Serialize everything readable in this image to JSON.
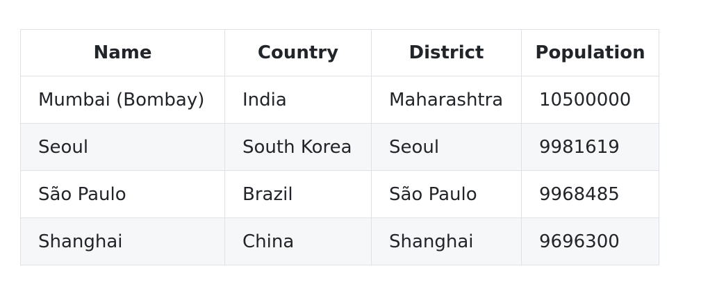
{
  "table": {
    "headers": [
      "Name",
      "Country",
      "District",
      "Population"
    ],
    "rows": [
      [
        "Mumbai (Bombay)",
        "India",
        "Maharashtra",
        "10500000"
      ],
      [
        "Seoul",
        "South Korea",
        "Seoul",
        "9981619"
      ],
      [
        "São Paulo",
        "Brazil",
        "São Paulo",
        "9968485"
      ],
      [
        "Shanghai",
        "China",
        "Shanghai",
        "9696300"
      ]
    ]
  }
}
